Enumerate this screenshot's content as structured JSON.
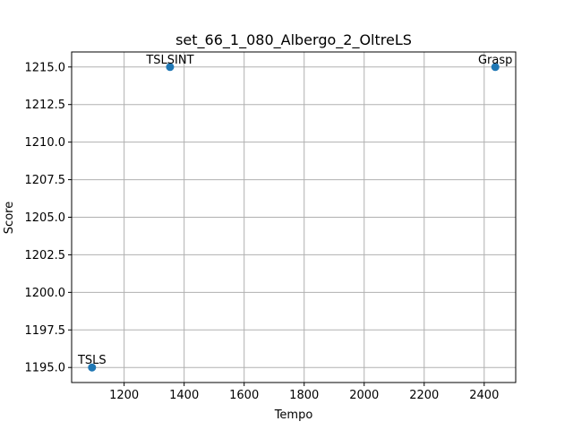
{
  "chart_data": {
    "type": "scatter",
    "title": "set_66_1_080_Albergo_2_OltreLS",
    "xlabel": "Tempo",
    "ylabel": "Score",
    "xlim": [
      1025,
      2505
    ],
    "ylim": [
      1194,
      1216
    ],
    "xticks": [
      1200,
      1400,
      1600,
      1800,
      2000,
      2200,
      2400
    ],
    "xtick_labels": [
      "1200",
      "1400",
      "1600",
      "1800",
      "2000",
      "2200",
      "2400"
    ],
    "yticks": [
      1195.0,
      1197.5,
      1200.0,
      1202.5,
      1205.0,
      1207.5,
      1210.0,
      1212.5,
      1215.0
    ],
    "ytick_labels": [
      "1195.0",
      "1197.5",
      "1200.0",
      "1202.5",
      "1205.0",
      "1207.5",
      "1210.0",
      "1212.5",
      "1215.0"
    ],
    "grid": true,
    "marker_color": "#1f77b4",
    "points": [
      {
        "label": "TSLSINT",
        "x": 1353,
        "y": 1215
      },
      {
        "label": "Grasp",
        "x": 2437,
        "y": 1215
      },
      {
        "label": "TSLS",
        "x": 1093,
        "y": 1195
      }
    ]
  }
}
